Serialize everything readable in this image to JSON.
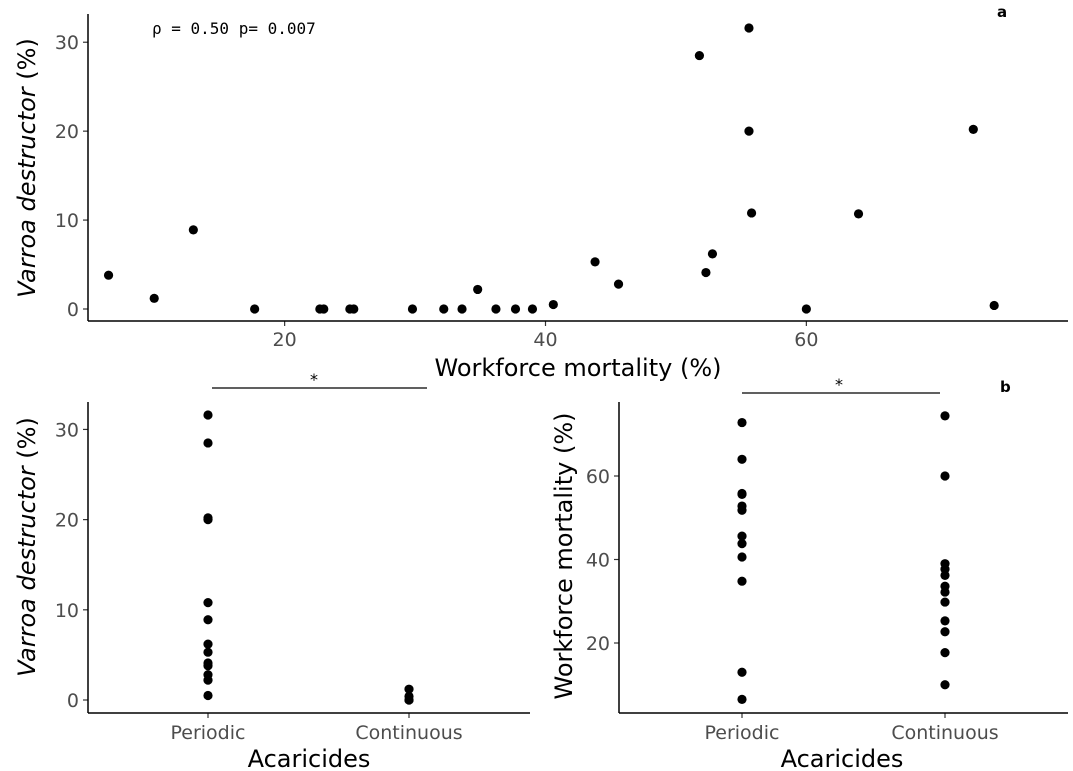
{
  "chart_data": [
    {
      "type": "scatter",
      "panel_label": "a",
      "annotation": "ρ = 0.50 p= 0.007",
      "xlabel": "Workforce mortality (%)",
      "ylabel_italic": "Varroa destructor",
      "ylabel_unit": " (%)",
      "xlim": [
        5,
        75
      ],
      "ylim": [
        0,
        33
      ],
      "xticks": [
        20,
        40,
        60
      ],
      "yticks": [
        0,
        10,
        20,
        30
      ],
      "points": [
        {
          "x": 6.5,
          "y": 3.8
        },
        {
          "x": 10,
          "y": 1.2
        },
        {
          "x": 13,
          "y": 8.9
        },
        {
          "x": 17.7,
          "y": 0
        },
        {
          "x": 22.7,
          "y": 0
        },
        {
          "x": 23,
          "y": 0
        },
        {
          "x": 25,
          "y": 0
        },
        {
          "x": 25.3,
          "y": 0
        },
        {
          "x": 29.8,
          "y": 0
        },
        {
          "x": 32.2,
          "y": 0
        },
        {
          "x": 33.6,
          "y": 0
        },
        {
          "x": 34.8,
          "y": 2.2
        },
        {
          "x": 36.2,
          "y": 0
        },
        {
          "x": 37.7,
          "y": 0
        },
        {
          "x": 39,
          "y": 0
        },
        {
          "x": 40.6,
          "y": 0.5
        },
        {
          "x": 43.8,
          "y": 5.3
        },
        {
          "x": 45.6,
          "y": 2.8
        },
        {
          "x": 51.8,
          "y": 28.5
        },
        {
          "x": 52.3,
          "y": 4.1
        },
        {
          "x": 52.8,
          "y": 6.2
        },
        {
          "x": 55.6,
          "y": 31.6
        },
        {
          "x": 55.6,
          "y": 20
        },
        {
          "x": 55.8,
          "y": 10.8
        },
        {
          "x": 60,
          "y": 0
        },
        {
          "x": 64,
          "y": 10.7
        },
        {
          "x": 72.8,
          "y": 20.2
        },
        {
          "x": 74.4,
          "y": 0.4
        }
      ]
    },
    {
      "type": "scatter",
      "xlabel": "Acaricides",
      "ylabel_italic": "Varroa destructor",
      "ylabel_unit": " (%)",
      "categories": [
        "Periodic",
        "Continuous"
      ],
      "ylim": [
        -1.5,
        33
      ],
      "yticks": [
        0,
        10,
        20,
        30
      ],
      "significance": "*",
      "series": [
        {
          "category": "Periodic",
          "values": [
            31.6,
            28.5,
            20.2,
            20.0,
            10.8,
            8.9,
            6.2,
            5.3,
            4.1,
            3.8,
            2.8,
            2.2,
            0.5
          ]
        },
        {
          "category": "Continuous",
          "values": [
            1.2,
            0.4,
            0,
            0
          ]
        }
      ]
    },
    {
      "type": "scatter",
      "panel_label": "b",
      "xlabel": "Acaricides",
      "ylabel": "Workforce mortality (%)",
      "categories": [
        "Periodic",
        "Continuous"
      ],
      "ylim": [
        5,
        78
      ],
      "yticks": [
        20,
        40,
        60
      ],
      "significance": "*",
      "series": [
        {
          "category": "Periodic",
          "values": [
            72.8,
            64,
            55.8,
            55.6,
            52.8,
            51.8,
            45.6,
            43.8,
            40.6,
            34.8,
            13,
            6.5
          ]
        },
        {
          "category": "Continuous",
          "values": [
            74.4,
            60,
            39,
            37.7,
            36.2,
            33.6,
            32.2,
            29.8,
            25.3,
            22.7,
            17.7,
            10
          ]
        }
      ]
    }
  ]
}
